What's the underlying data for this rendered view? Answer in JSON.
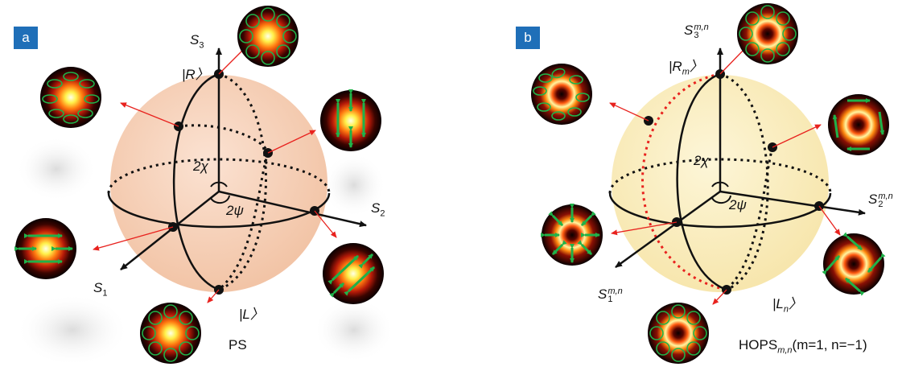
{
  "panels": {
    "a": {
      "badge": "a",
      "s3": "S",
      "s3_sub": "3",
      "s2": "S",
      "s2_sub": "2",
      "s1": "S",
      "s1_sub": "1",
      "r": "|R〉",
      "l": "|L〉",
      "chi": "2χ",
      "psi": "2ψ",
      "caption": "PS",
      "sphere_color": "#f6d3bd"
    },
    "b": {
      "badge": "b",
      "s3": "S",
      "s3_sub": "3",
      "s3_sup": "m,n",
      "s2": "S",
      "s2_sub": "2",
      "s2_sup": "m,n",
      "s1": "S",
      "s1_sub": "1",
      "s1_sup": "m,n",
      "r_pre": "|R",
      "r_sub": "m",
      "r_post": "〉",
      "l_pre": "|L",
      "l_sub": "n",
      "l_post": "〉",
      "chi": "2χ",
      "psi": "2ψ",
      "caption_pre": "HOPS",
      "caption_sub": "m,n",
      "caption_post": "(m=1, n=−1)",
      "sphere_color": "#fbf0c4"
    }
  },
  "colors": {
    "arrow": "#e8221e",
    "polarization": "#1fb24a",
    "equator_hops": "#e8221e",
    "badge": "#1f6fb8"
  }
}
